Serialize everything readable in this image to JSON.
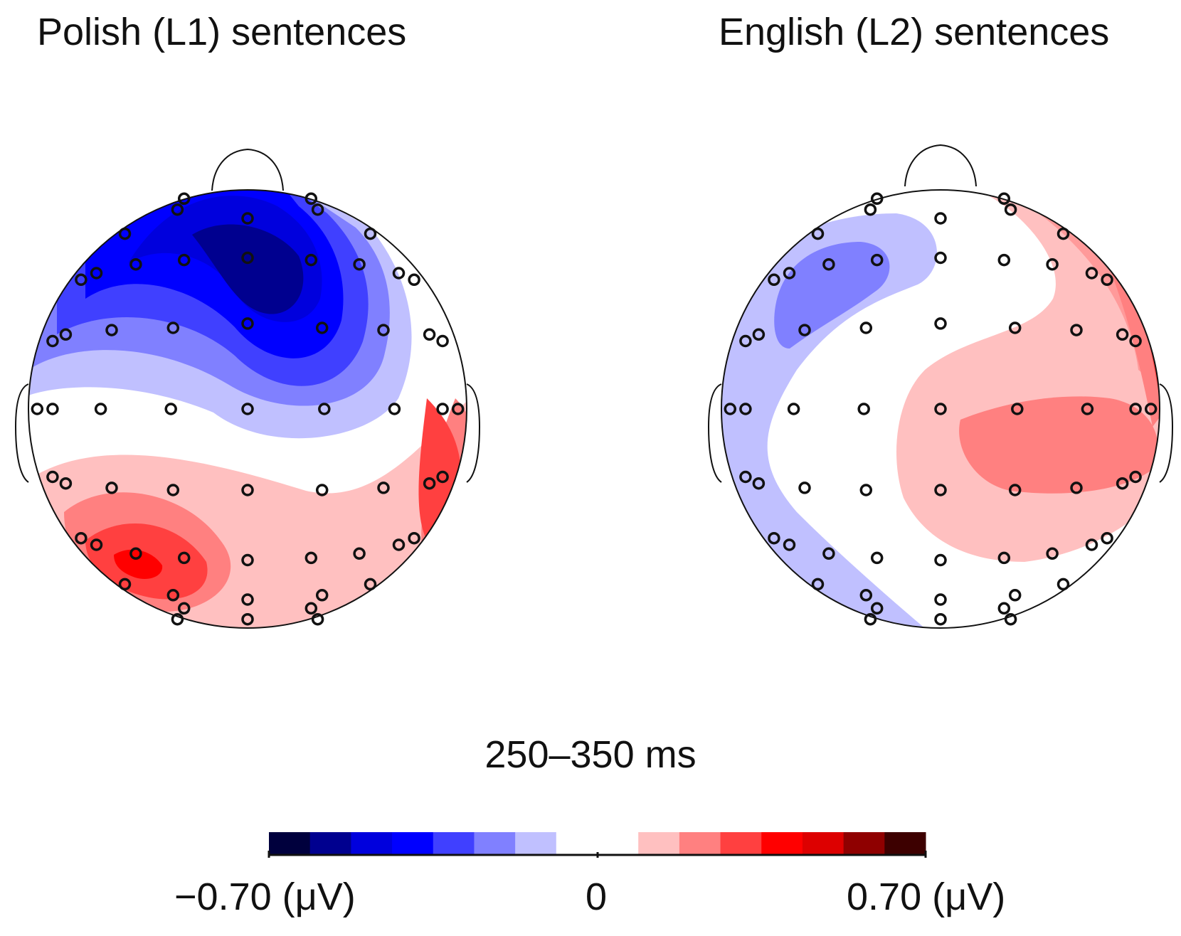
{
  "figure": {
    "panels": [
      {
        "title": "Polish (L1) sentences"
      },
      {
        "title": "English (L2) sentences"
      }
    ],
    "time_window": "250–350 ms",
    "colorbar": {
      "min_label": "−0.70 (μV)",
      "mid_label": "0",
      "max_label": "0.70 (μV)",
      "range": [
        -0.7,
        0.7
      ],
      "colors": [
        "#00003d",
        "#00008f",
        "#0000dd",
        "#0000ff",
        "#4040ff",
        "#8080ff",
        "#c0c0ff",
        "#ffffff",
        "#ffffff",
        "#ffc0c0",
        "#ff8080",
        "#ff4040",
        "#ff0000",
        "#dd0000",
        "#8f0000",
        "#3d0000"
      ]
    }
  },
  "chart_data": [
    {
      "type": "heatmap",
      "subtype": "scalp-topography",
      "title": "Polish (L1) sentences",
      "time_window": "250–350 ms",
      "unit": "μV",
      "zlim": [
        -0.7,
        0.7
      ],
      "regions": [
        {
          "area": "frontal-central midline",
          "value": -0.55
        },
        {
          "area": "left frontal",
          "value": -0.4
        },
        {
          "area": "left temporal",
          "value": -0.1
        },
        {
          "area": "right temporal",
          "value": 0.25
        },
        {
          "area": "central",
          "value": 0.0
        },
        {
          "area": "left parietal-occipital",
          "value": 0.45
        },
        {
          "area": "right parietal-occipital",
          "value": 0.3
        },
        {
          "area": "occipital midline",
          "value": 0.2
        }
      ]
    },
    {
      "type": "heatmap",
      "subtype": "scalp-topography",
      "title": "English (L2) sentences",
      "time_window": "250–350 ms",
      "unit": "μV",
      "zlim": [
        -0.7,
        0.7
      ],
      "regions": [
        {
          "area": "left frontal",
          "value": -0.25
        },
        {
          "area": "left temporal",
          "value": -0.1
        },
        {
          "area": "left occipital edge",
          "value": -0.35
        },
        {
          "area": "right frontal edge",
          "value": 0.25
        },
        {
          "area": "right central",
          "value": 0.2
        },
        {
          "area": "right temporal",
          "value": 0.15
        },
        {
          "area": "midline",
          "value": 0.0
        }
      ]
    }
  ]
}
